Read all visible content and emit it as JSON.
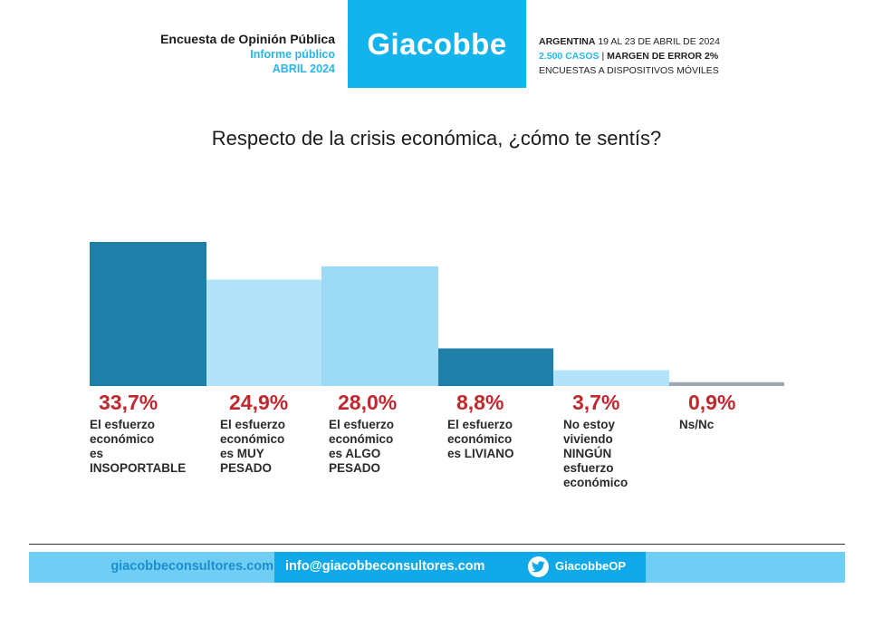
{
  "header": {
    "survey_title": "Encuesta de Opinión Pública",
    "report_type": "Informe público",
    "date": "ABRIL 2024",
    "brand": "Giacobbe",
    "country": "ARGENTINA",
    "field_dates": "19 AL 23 DE ABRIL DE 2024",
    "cases": "2.500 CASOS",
    "separator": "|",
    "margin": "MARGEN DE ERROR 2%",
    "method": "ENCUESTAS A DISPOSITIVOS MÓVILES"
  },
  "chart_data": {
    "type": "bar",
    "title": "Respecto de la crisis económica, ¿cómo te sentís?",
    "categories": [
      "El esfuerzo económico es INSOPORTABLE",
      "El esfuerzo económico es MUY PESADO",
      "El esfuerzo económico es ALGO PESADO",
      "El esfuerzo económico es LIVIANO",
      "No estoy viviendo NINGÚN esfuerzo económico",
      "Ns/Nc"
    ],
    "category_display": [
      "El esfuerzo\neconómico\nes\nINSOPORTABLE",
      "El esfuerzo\neconómico\nes MUY\nPESADO",
      "El esfuerzo\neconómico\nes ALGO\nPESADO",
      "El esfuerzo\neconómico\nes LIVIANO",
      "No estoy\nviviendo\nNINGÚN\nesfuerzo\neconómico",
      "Ns/Nc"
    ],
    "values": [
      33.7,
      24.9,
      28.0,
      8.8,
      3.7,
      0.9
    ],
    "value_labels": [
      "33,7%",
      "24,9%",
      "28,0%",
      "8,8%",
      "3,7%",
      "0,9%"
    ],
    "colors": [
      "#1e7fa9",
      "#b3e3f8",
      "#9ddaf6",
      "#1e7fa9",
      "#b3e3f8",
      "#9aa9b4"
    ],
    "label_color": "#c0282e",
    "xlabel": "",
    "ylabel": "",
    "ylim": [
      0,
      33.7
    ],
    "grid": false,
    "legend": "none"
  },
  "footer": {
    "website": "giacobbeconsultores.com",
    "email": "info@giacobbeconsultores.com",
    "twitter": "GiacobbeOP",
    "twitter_icon": "twitter-bird-icon"
  }
}
